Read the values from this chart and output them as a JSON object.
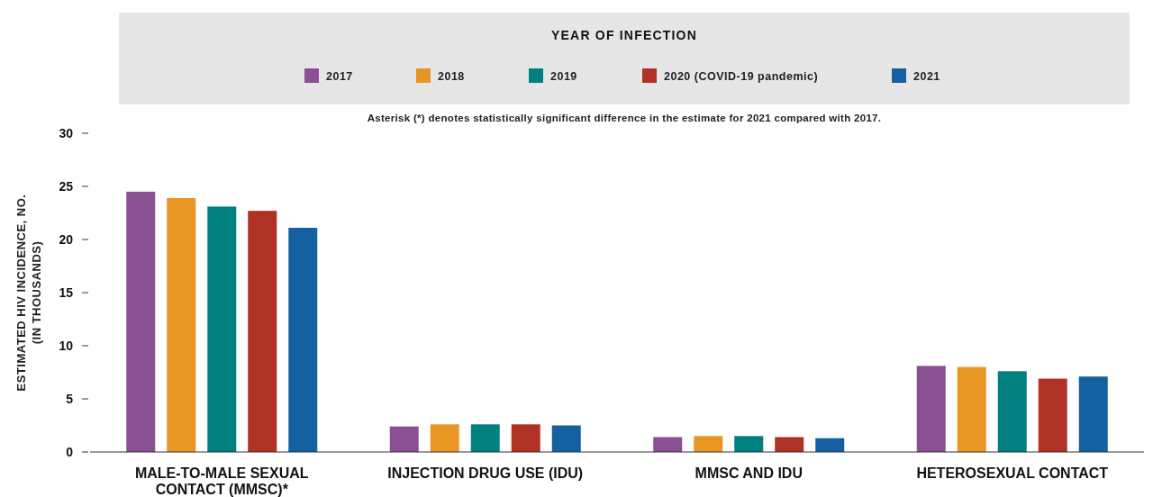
{
  "chart_data": {
    "type": "bar",
    "legend_title": "YEAR OF INFECTION",
    "ylabel": "ESTIMATED HIV INCIDENCE, NO. (IN THOUSANDS)",
    "annotations": [
      "Asterisk (*) denotes statistically significant difference in the estimate for 2021 compared with 2017."
    ],
    "categories": [
      "MALE-TO-MALE SEXUAL CONTACT (MMSC)*",
      "INJECTION DRUG USE (IDU)",
      "MMSC AND IDU",
      "HETEROSEXUAL CONTACT"
    ],
    "series": [
      {
        "name": "2017",
        "color": "#8b4f93",
        "values": [
          24.5,
          2.4,
          1.4,
          8.1
        ]
      },
      {
        "name": "2018",
        "color": "#e89623",
        "values": [
          23.9,
          2.6,
          1.5,
          8.0
        ]
      },
      {
        "name": "2019",
        "color": "#00807f",
        "values": [
          23.1,
          2.6,
          1.5,
          7.6
        ]
      },
      {
        "name": "2020 (COVID-19 pandemic)",
        "color": "#b03226",
        "values": [
          22.7,
          2.6,
          1.4,
          6.9
        ]
      },
      {
        "name": "2021",
        "color": "#1560a0",
        "values": [
          21.1,
          2.5,
          1.3,
          7.1
        ]
      }
    ],
    "ylim": [
      0,
      30
    ],
    "yticks": [
      0,
      5,
      10,
      15,
      20,
      25,
      30
    ],
    "legend": "top",
    "grid": false
  }
}
